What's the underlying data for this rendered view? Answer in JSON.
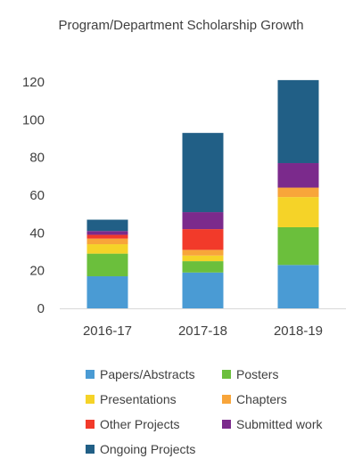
{
  "chart_data": {
    "type": "bar",
    "stacked": true,
    "title": "Program/Department Scholarship Growth",
    "categories": [
      "2016-17",
      "2017-18",
      "2018-19"
    ],
    "ylim": [
      0,
      120
    ],
    "yticks": [
      0,
      20,
      40,
      60,
      80,
      100,
      120
    ],
    "grid": false,
    "legend_position": "bottom",
    "series": [
      {
        "name": "Papers/Abstracts",
        "color": "#4A9BD4",
        "values": [
          17,
          19,
          23
        ]
      },
      {
        "name": "Posters",
        "color": "#6BBF3C",
        "values": [
          12,
          6,
          20
        ]
      },
      {
        "name": "Presentations",
        "color": "#F5D328",
        "values": [
          5,
          3,
          16
        ]
      },
      {
        "name": "Chapters",
        "color": "#F8A53A",
        "values": [
          3,
          3,
          5
        ]
      },
      {
        "name": "Other Projects",
        "color": "#F23A2A",
        "values": [
          2,
          11,
          0
        ]
      },
      {
        "name": "Submitted work",
        "color": "#7B2A8C",
        "values": [
          2,
          9,
          13
        ]
      },
      {
        "name": "Ongoing Projects",
        "color": "#215F86",
        "values": [
          6,
          42,
          44
        ]
      }
    ]
  }
}
